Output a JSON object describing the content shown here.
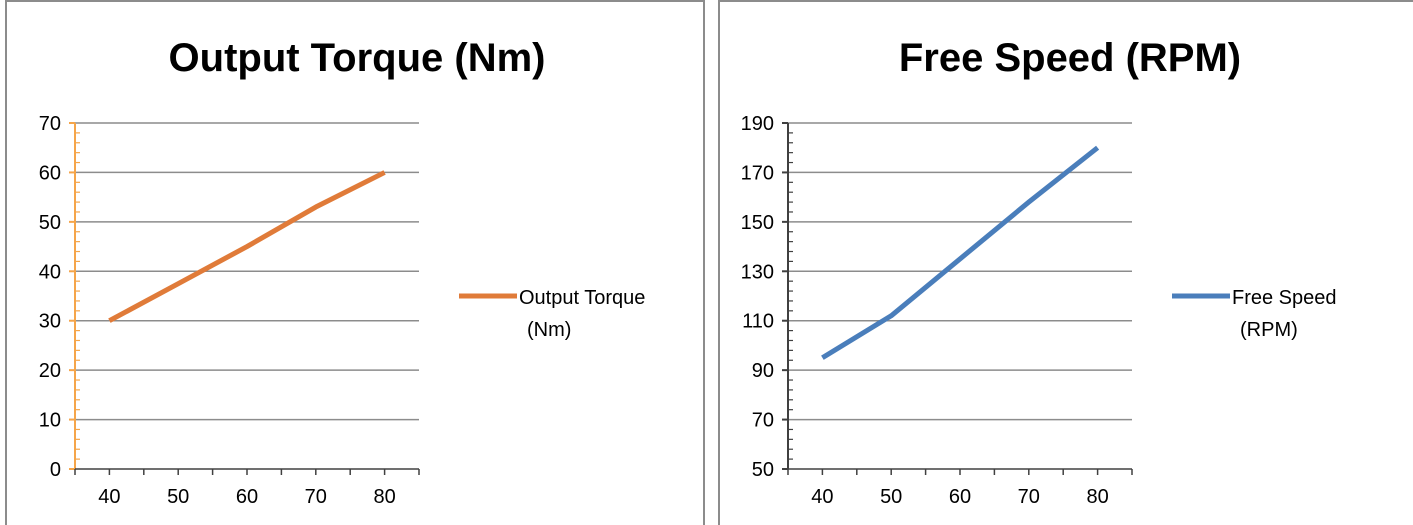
{
  "chart_data": [
    {
      "type": "line",
      "title": "Output Torque (Nm)",
      "x": [
        40,
        50,
        60,
        70,
        80
      ],
      "series": [
        {
          "name": "Output Torque (Nm)",
          "values": [
            30,
            37.5,
            45,
            53,
            60
          ],
          "color": "#e07b39"
        }
      ],
      "legend_lines": [
        "Output Torque",
        "(Nm)"
      ],
      "legend_position": "right",
      "xlim": [
        35,
        85
      ],
      "xticks": [
        40,
        50,
        60,
        70,
        80
      ],
      "ylim": [
        0,
        70
      ],
      "yticks": [
        0,
        10,
        20,
        30,
        40,
        50,
        60,
        70
      ],
      "grid": true,
      "axis_color": "#f5a54a"
    },
    {
      "type": "line",
      "title": "Free Speed (RPM)",
      "x": [
        40,
        50,
        60,
        70,
        80
      ],
      "series": [
        {
          "name": "Free Speed (RPM)",
          "values": [
            95,
            112,
            135,
            158,
            180
          ],
          "color": "#4a7ebb"
        }
      ],
      "legend_lines": [
        "Free Speed",
        "(RPM)"
      ],
      "legend_position": "right",
      "xlim": [
        35,
        85
      ],
      "xticks": [
        40,
        50,
        60,
        70,
        80
      ],
      "ylim": [
        50,
        190
      ],
      "yticks": [
        50,
        70,
        90,
        110,
        130,
        150,
        170,
        190
      ],
      "grid": true,
      "axis_color": "#404040"
    }
  ]
}
